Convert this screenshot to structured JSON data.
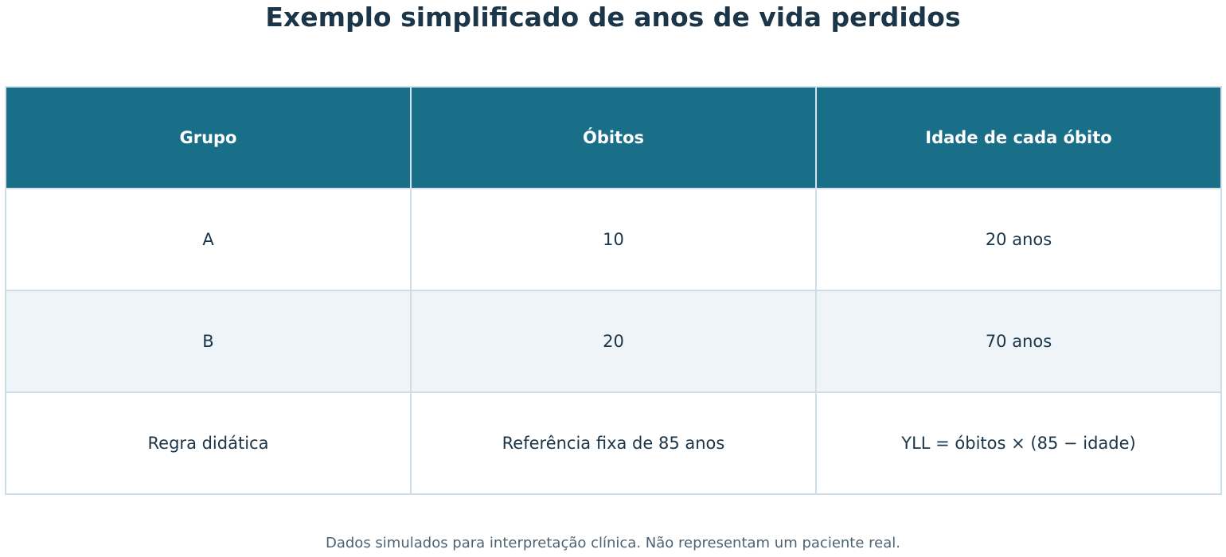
{
  "title": "Exemplo simplificado de anos de vida perdidos",
  "table": {
    "header": [
      "Grupo",
      "Óbitos",
      "Idade de cada óbito"
    ],
    "rows": [
      [
        "A",
        10,
        "20 anos"
      ],
      [
        "B",
        20,
        "70 anos"
      ],
      [
        "Regra didática",
        "Referência fixa de 85 anos",
        "YLL = óbitos × (85 − idade)"
      ]
    ]
  },
  "footnote": "Dados simulados para interpretação clínica. Não representam um paciente real."
}
